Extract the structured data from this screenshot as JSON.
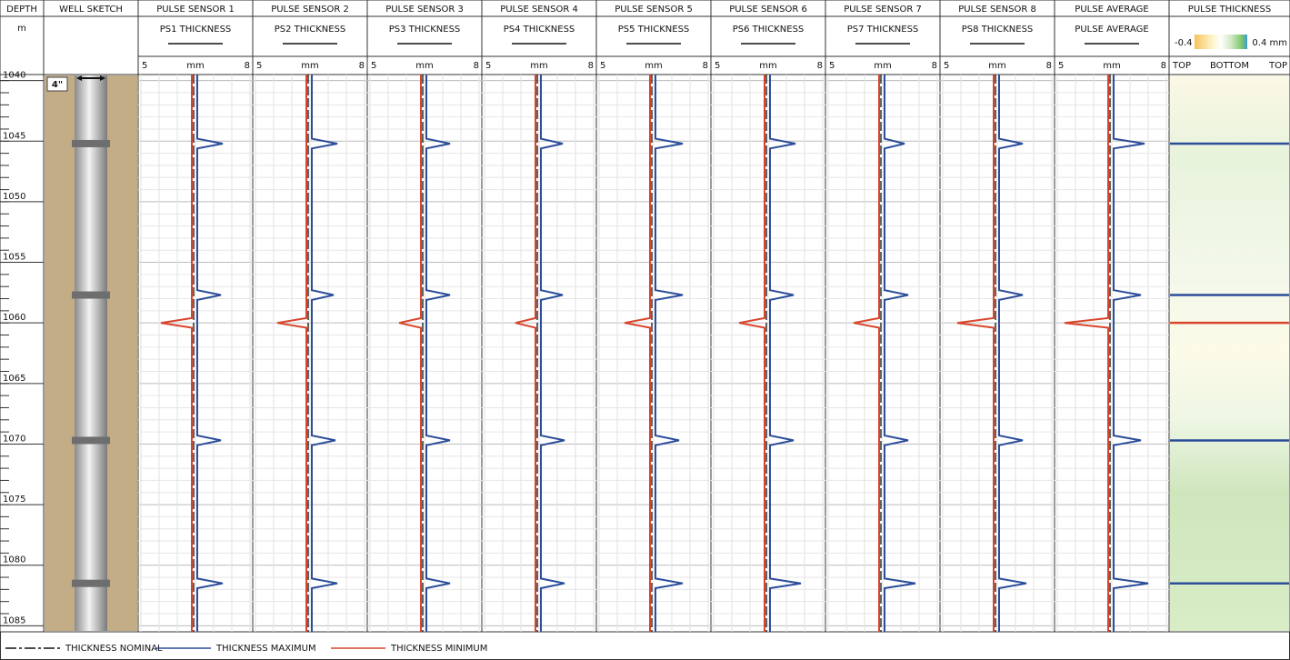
{
  "header": {
    "columns": [
      "DEPTH",
      "WELL SKETCH",
      "PULSE SENSOR 1",
      "PULSE SENSOR 2",
      "PULSE SENSOR 3",
      "PULSE SENSOR 4",
      "PULSE SENSOR 5",
      "PULSE SENSOR 6",
      "PULSE SENSOR 7",
      "PULSE SENSOR 8",
      "PULSE AVERAGE",
      "PULSE THICKNESS"
    ]
  },
  "units": {
    "depth": "m",
    "tracks": [
      "PS1 THICKNESS",
      "PS2 THICKNESS",
      "PS3 THICKNESS",
      "PS4 THICKNESS",
      "PS5 THICKNESS",
      "PS6 THICKNESS",
      "PS7 THICKNESS",
      "PS8 THICKNESS",
      "PULSE AVERAGE"
    ],
    "scale_min": 5,
    "scale_unit": "mm",
    "scale_max": 8
  },
  "thickness_scale": {
    "min_label": "-0.4",
    "max_label": "0.4 mm",
    "labels": [
      "TOP",
      "BOTTOM",
      "TOP"
    ]
  },
  "casing_size": "4\"",
  "xlim": [
    5,
    8
  ],
  "xticks": [
    5,
    5.5,
    6,
    6.5,
    7,
    7.5,
    8
  ],
  "ylim": [
    1039.5,
    1085.5
  ],
  "depth_ticks": [
    1040,
    1045,
    1050,
    1055,
    1060,
    1065,
    1070,
    1075,
    1080,
    1085
  ],
  "minor_ticks": [
    1040,
    1041,
    1042,
    1043,
    1044,
    1045,
    1046,
    1047,
    1048,
    1049,
    1050,
    1051,
    1052,
    1053,
    1054,
    1055,
    1056,
    1057,
    1058,
    1059,
    1060,
    1061,
    1062,
    1063,
    1064,
    1065,
    1066,
    1067,
    1068,
    1069,
    1070,
    1071,
    1072,
    1073,
    1074,
    1075,
    1076,
    1077,
    1078,
    1079,
    1080,
    1081,
    1082,
    1083,
    1084,
    1085
  ],
  "collars": [
    1045.2,
    1057.7,
    1069.7,
    1081.5
  ],
  "loss_depth": 1060,
  "depths": [
    1039.5,
    1044.8,
    1045.2,
    1045.6,
    1057.3,
    1057.7,
    1058.1,
    1059.6,
    1060.0,
    1060.4,
    1069.3,
    1069.7,
    1070.1,
    1081.1,
    1081.5,
    1081.9,
    1085.5
  ],
  "tracks": [
    {
      "nominal": 6.45,
      "maximum": [
        6.55,
        6.55,
        7.25,
        6.55,
        6.55,
        7.2,
        6.55,
        6.55,
        6.55,
        6.55,
        6.55,
        7.2,
        6.55,
        6.55,
        7.25,
        6.55,
        6.55
      ],
      "minimum": [
        6.4,
        6.4,
        6.4,
        6.4,
        6.4,
        6.4,
        6.4,
        6.4,
        5.55,
        6.4,
        6.4,
        6.4,
        6.4,
        6.4,
        6.4,
        6.4,
        6.4
      ]
    },
    {
      "nominal": 6.45,
      "maximum": [
        6.55,
        6.55,
        7.25,
        6.55,
        6.55,
        7.15,
        6.55,
        6.55,
        6.55,
        6.55,
        6.55,
        7.2,
        6.55,
        6.55,
        7.25,
        6.55,
        6.55
      ],
      "minimum": [
        6.4,
        6.4,
        6.4,
        6.4,
        6.4,
        6.4,
        6.4,
        6.4,
        5.6,
        6.4,
        6.4,
        6.4,
        6.4,
        6.4,
        6.4,
        6.4,
        6.4
      ]
    },
    {
      "nominal": 6.45,
      "maximum": [
        6.55,
        6.55,
        7.2,
        6.55,
        6.55,
        7.2,
        6.55,
        6.55,
        6.55,
        6.55,
        6.55,
        7.2,
        6.55,
        6.55,
        7.2,
        6.55,
        6.55
      ],
      "minimum": [
        6.4,
        6.4,
        6.4,
        6.4,
        6.4,
        6.4,
        6.4,
        6.4,
        5.8,
        6.4,
        6.4,
        6.4,
        6.4,
        6.4,
        6.4,
        6.4,
        6.4
      ]
    },
    {
      "nominal": 6.45,
      "maximum": [
        6.55,
        6.55,
        7.15,
        6.55,
        6.55,
        7.15,
        6.55,
        6.55,
        6.55,
        6.55,
        6.55,
        7.2,
        6.55,
        6.55,
        7.2,
        6.55,
        6.55
      ],
      "minimum": [
        6.4,
        6.4,
        6.4,
        6.4,
        6.4,
        6.4,
        6.4,
        6.4,
        5.85,
        6.4,
        6.4,
        6.4,
        6.4,
        6.4,
        6.4,
        6.4,
        6.4
      ]
    },
    {
      "nominal": 6.45,
      "maximum": [
        6.55,
        6.55,
        7.3,
        6.55,
        6.55,
        7.3,
        6.55,
        6.55,
        6.55,
        6.55,
        6.55,
        7.2,
        6.55,
        6.55,
        7.3,
        6.55,
        6.55
      ],
      "minimum": [
        6.4,
        6.4,
        6.4,
        6.4,
        6.4,
        6.4,
        6.4,
        6.4,
        5.7,
        6.4,
        6.4,
        6.4,
        6.4,
        6.4,
        6.4,
        6.4,
        6.4
      ]
    },
    {
      "nominal": 6.45,
      "maximum": [
        6.55,
        6.55,
        7.25,
        6.55,
        6.55,
        7.2,
        6.55,
        6.55,
        6.55,
        6.55,
        6.55,
        7.2,
        6.55,
        6.55,
        7.4,
        6.55,
        6.55
      ],
      "minimum": [
        6.4,
        6.4,
        6.4,
        6.4,
        6.4,
        6.4,
        6.4,
        6.4,
        5.7,
        6.4,
        6.4,
        6.4,
        6.4,
        6.4,
        6.4,
        6.4,
        6.4
      ]
    },
    {
      "nominal": 6.45,
      "maximum": [
        6.55,
        6.55,
        7.1,
        6.55,
        6.55,
        7.2,
        6.55,
        6.55,
        6.55,
        6.55,
        6.55,
        7.2,
        6.55,
        6.55,
        7.4,
        6.55,
        6.55
      ],
      "minimum": [
        6.4,
        6.4,
        6.4,
        6.4,
        6.4,
        6.4,
        6.4,
        6.4,
        5.7,
        6.4,
        6.4,
        6.4,
        6.4,
        6.4,
        6.4,
        6.4,
        6.4
      ]
    },
    {
      "nominal": 6.45,
      "maximum": [
        6.55,
        6.55,
        7.2,
        6.55,
        6.55,
        7.2,
        6.55,
        6.55,
        6.55,
        6.55,
        6.55,
        7.2,
        6.55,
        6.55,
        7.3,
        6.55,
        6.55
      ],
      "minimum": [
        6.4,
        6.4,
        6.4,
        6.4,
        6.4,
        6.4,
        6.4,
        6.4,
        5.4,
        6.4,
        6.4,
        6.4,
        6.4,
        6.4,
        6.4,
        6.4,
        6.4
      ]
    },
    {
      "nominal": 6.45,
      "maximum": [
        6.55,
        6.55,
        7.4,
        6.55,
        6.55,
        7.3,
        6.55,
        6.55,
        6.55,
        6.55,
        6.55,
        7.3,
        6.55,
        6.55,
        7.5,
        6.55,
        6.55
      ],
      "minimum": [
        6.4,
        6.4,
        6.4,
        6.4,
        6.4,
        6.4,
        6.4,
        6.4,
        5.2,
        6.4,
        6.4,
        6.4,
        6.4,
        6.4,
        6.4,
        6.4,
        6.4
      ]
    }
  ],
  "colors": {
    "nominal": "#111111",
    "maximum": "#2b4d9a",
    "minimum": "#d9452b"
  },
  "legend": [
    "THICKNESS NOMINAL",
    "THICKNESS MAXIMUM",
    "THICKNESS MINIMUM"
  ]
}
